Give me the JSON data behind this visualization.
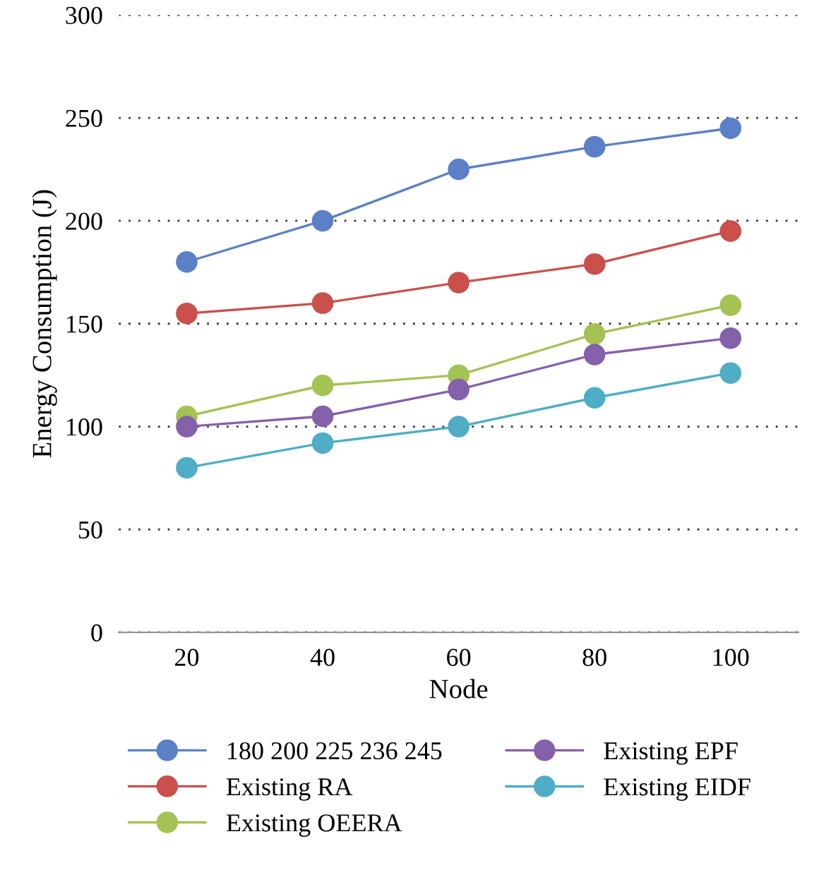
{
  "chart_data": {
    "type": "line",
    "xlabel": "Node",
    "ylabel": "Energy Consumption (J)",
    "x": [
      20,
      40,
      60,
      80,
      100
    ],
    "series": [
      {
        "name": "180 200 225 236 245",
        "color": "#5b80c6",
        "values": [
          180,
          200,
          225,
          236,
          245
        ]
      },
      {
        "name": "Existing RA",
        "color": "#c9504b",
        "values": [
          155,
          160,
          170,
          179,
          195
        ]
      },
      {
        "name": "Existing OEERA",
        "color": "#a5c254",
        "values": [
          105,
          120,
          125,
          145,
          159
        ]
      },
      {
        "name": "Existing EPF",
        "color": "#8560ab",
        "values": [
          100,
          105,
          118,
          135,
          143
        ]
      },
      {
        "name": "Existing EIDF",
        "color": "#4fadc6",
        "values": [
          80,
          92,
          100,
          114,
          126
        ]
      }
    ],
    "xlim": [
      10,
      110
    ],
    "xticks": [
      20,
      40,
      60,
      80,
      100
    ],
    "ylim": [
      0,
      300
    ],
    "yticks": [
      0,
      50,
      100,
      150,
      200,
      250,
      300
    ],
    "grid": "y",
    "legend": "bottom",
    "marker": "circle",
    "line_style": "solid"
  }
}
